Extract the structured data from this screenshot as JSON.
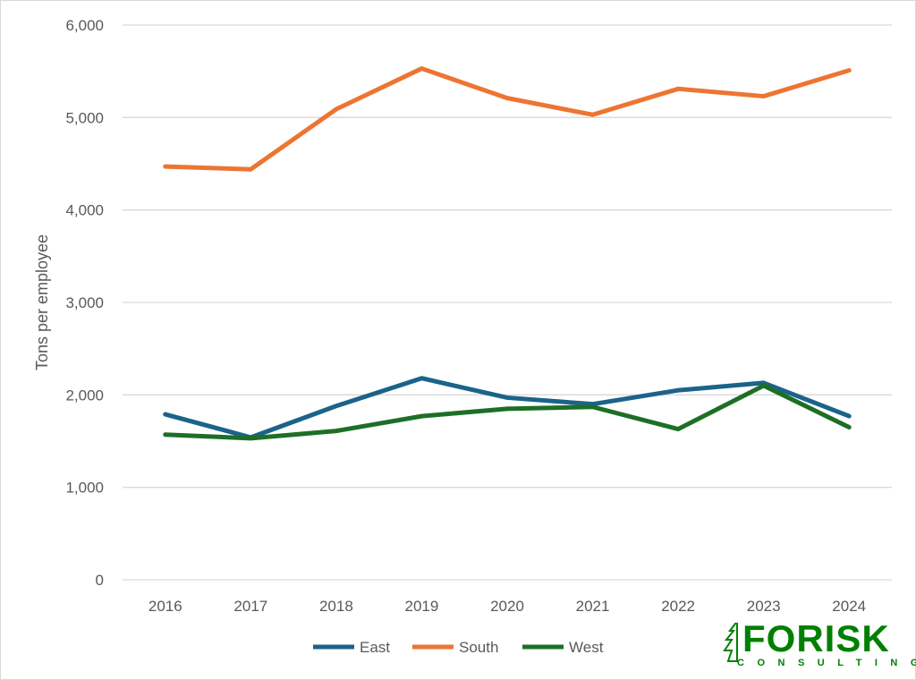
{
  "chart_data": {
    "type": "line",
    "title": "",
    "xlabel": "",
    "ylabel": "Tons per employee",
    "categories": [
      "2016",
      "2017",
      "2018",
      "2019",
      "2020",
      "2021",
      "2022",
      "2023",
      "2024"
    ],
    "ylim": [
      0,
      6000
    ],
    "yticks": [
      0,
      1000,
      2000,
      3000,
      4000,
      5000,
      6000
    ],
    "ytick_labels": [
      "0",
      "1,000",
      "2,000",
      "3,000",
      "4,000",
      "5,000",
      "6,000"
    ],
    "grid": true,
    "legend_position": "bottom",
    "series": [
      {
        "name": "East",
        "color": "#1b6389",
        "values": [
          1790,
          1540,
          1880,
          2180,
          1970,
          1900,
          2050,
          2130,
          1770
        ]
      },
      {
        "name": "South",
        "color": "#ed7532",
        "values": [
          4470,
          4440,
          5090,
          5530,
          5210,
          5030,
          5310,
          5230,
          5510
        ]
      },
      {
        "name": "West",
        "color": "#1d6f26",
        "values": [
          1570,
          1530,
          1610,
          1770,
          1850,
          1870,
          1630,
          2100,
          1650
        ]
      }
    ]
  },
  "logo": {
    "name": "FORISK",
    "tagline": "CONSULTING",
    "color": "#008000"
  }
}
